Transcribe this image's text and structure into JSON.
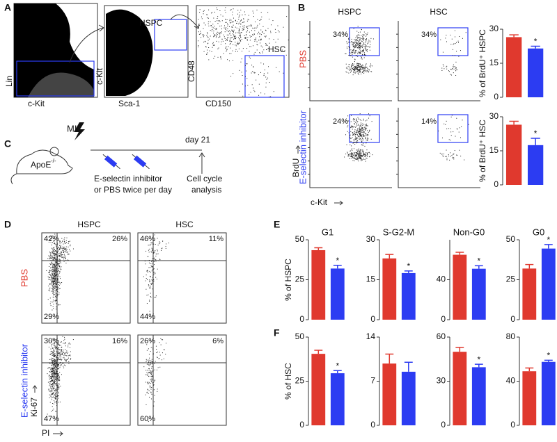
{
  "panel_letters": [
    "A",
    "B",
    "C",
    "D",
    "E",
    "F"
  ],
  "panel_a": {
    "lin": "Lin",
    "ckit_x": "c-Kit",
    "ckit_y": "c-Kit",
    "sca1": "Sca-1",
    "cd48": "CD48",
    "cd150": "CD150",
    "hspc": "HSPC",
    "hsc": "HSC"
  },
  "panel_b": {
    "col_titles": [
      "HSPC",
      "HSC"
    ],
    "row_labels": [
      "PBS",
      "E-selectin inhibitor"
    ],
    "percents": [
      [
        "34%",
        "34%"
      ],
      [
        "24%",
        "14%"
      ]
    ],
    "y_axis": "BrdU",
    "x_axis": "c-Kit"
  },
  "panel_c": {
    "mi": "MI",
    "mouse": "ApoE",
    "genotype": "-/-",
    "day": "day 21",
    "treatment": [
      "E-selectin inhibitor",
      "or PBS twice per day"
    ],
    "analysis": [
      "Cell cycle",
      "analysis"
    ]
  },
  "panel_d": {
    "col_titles": [
      "HSPC",
      "HSC"
    ],
    "row_labels": [
      "PBS",
      "E-selectin inhibitor"
    ],
    "quadrants": [
      [
        {
          "tl": "42%",
          "tr": "26%",
          "bl": "29%"
        },
        {
          "tl": "46%",
          "tr": "11%",
          "bl": "44%"
        }
      ],
      [
        {
          "tl": "30%",
          "tr": "16%",
          "bl": "47%"
        },
        {
          "tl": "26%",
          "tr": "6%",
          "bl": "60%"
        }
      ]
    ],
    "y_axis": "Ki-67",
    "x_axis": "PI"
  },
  "chart_data": [
    {
      "type": "bar",
      "y_label": "% of BrdU⁺ HSPC",
      "values": [
        26.5,
        21.5
      ],
      "errors": [
        1,
        1
      ],
      "annotations": [
        null,
        "*"
      ],
      "colors": [
        "#e0392e",
        "#2c3cf2"
      ],
      "ylim": [
        0,
        30
      ],
      "yticks": [
        0,
        15,
        30
      ]
    },
    {
      "type": "bar",
      "y_label": "% of BrdU⁺ HSC",
      "values": [
        26.5,
        17.5
      ],
      "errors": [
        1.5,
        3
      ],
      "annotations": [
        null,
        "*"
      ],
      "colors": [
        "#e0392e",
        "#2c3cf2"
      ],
      "ylim": [
        0,
        30
      ],
      "yticks": [
        0,
        15,
        30
      ]
    },
    {
      "type": "bar",
      "title": "G1",
      "y_label": "% of HSPC",
      "values": [
        43.5,
        32
      ],
      "errors": [
        1.5,
        2
      ],
      "annotations": [
        null,
        "*"
      ],
      "colors": [
        "#e0392e",
        "#2c3cf2"
      ],
      "ylim": [
        0,
        50
      ],
      "yticks": [
        0,
        25,
        50
      ]
    },
    {
      "type": "bar",
      "title": "S-G2-M",
      "values": [
        23,
        17.5
      ],
      "errors": [
        1.5,
        0.8
      ],
      "annotations": [
        null,
        "*"
      ],
      "colors": [
        "#e0392e",
        "#2c3cf2"
      ],
      "ylim": [
        0,
        30
      ],
      "yticks": [
        0,
        15,
        30
      ]
    },
    {
      "type": "bar",
      "title": "Non-G0",
      "values": [
        65,
        51
      ],
      "errors": [
        2.5,
        3
      ],
      "annotations": [
        null,
        "*"
      ],
      "colors": [
        "#e0392e",
        "#2c3cf2"
      ],
      "ylim": [
        0,
        80
      ],
      "yticks": [
        0,
        40
      ]
    },
    {
      "type": "bar",
      "title": "G0",
      "values": [
        32,
        44.5
      ],
      "errors": [
        2.5,
        2.5
      ],
      "annotations": [
        null,
        "*"
      ],
      "colors": [
        "#e0392e",
        "#2c3cf2"
      ],
      "ylim": [
        0,
        50
      ],
      "yticks": [
        0,
        25,
        50
      ]
    },
    {
      "type": "bar",
      "y_label": "% of HSC",
      "values": [
        40.5,
        29.5
      ],
      "errors": [
        2,
        1.5
      ],
      "annotations": [
        null,
        "*"
      ],
      "colors": [
        "#e0392e",
        "#2c3cf2"
      ],
      "ylim": [
        0,
        50
      ],
      "yticks": [
        0,
        25,
        50
      ]
    },
    {
      "type": "bar",
      "values": [
        9.8,
        8.5
      ],
      "errors": [
        1.5,
        1.5
      ],
      "annotations": [
        null,
        null
      ],
      "colors": [
        "#e0392e",
        "#2c3cf2"
      ],
      "ylim": [
        0,
        14
      ],
      "yticks": [
        0,
        7,
        14
      ]
    },
    {
      "type": "bar",
      "values": [
        50,
        39.5
      ],
      "errors": [
        3,
        2
      ],
      "annotations": [
        null,
        "*"
      ],
      "colors": [
        "#e0392e",
        "#2c3cf2"
      ],
      "ylim": [
        0,
        60
      ],
      "yticks": [
        0,
        30,
        60
      ]
    },
    {
      "type": "bar",
      "values": [
        49,
        57.5
      ],
      "errors": [
        3,
        1.5
      ],
      "annotations": [
        null,
        "*"
      ],
      "colors": [
        "#e0392e",
        "#2c3cf2"
      ],
      "ylim": [
        0,
        80
      ],
      "yticks": [
        0,
        40,
        80
      ]
    }
  ]
}
